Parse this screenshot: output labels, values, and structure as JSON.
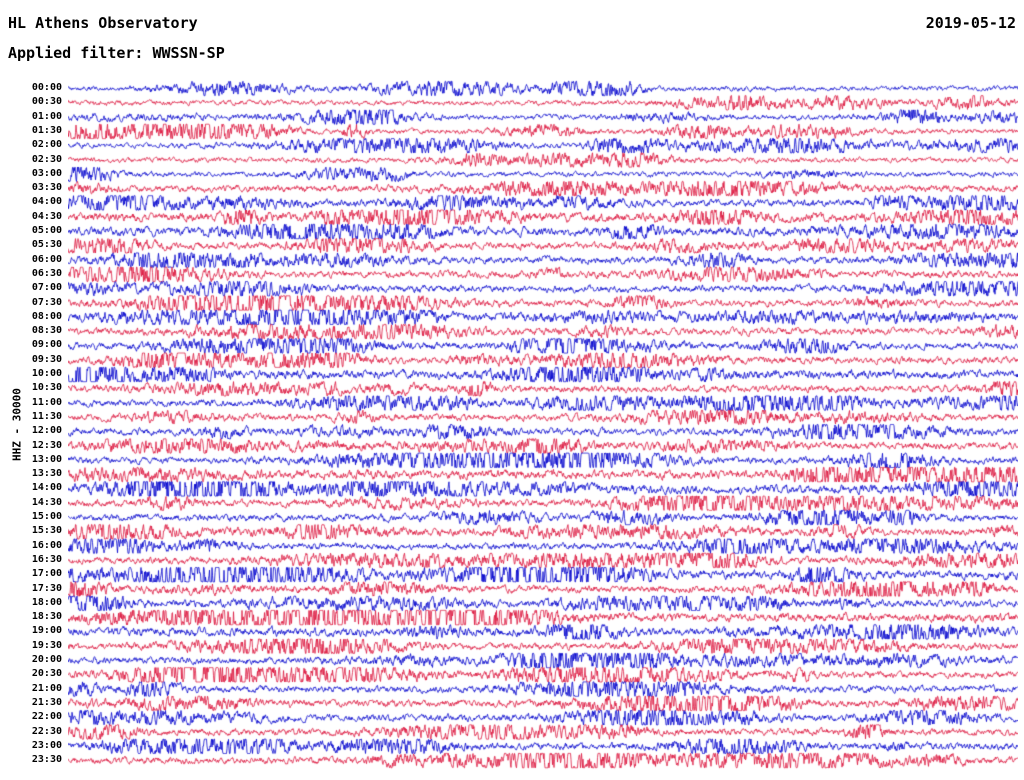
{
  "header": {
    "title": "HL Athens Observatory",
    "date": "2019-05-12",
    "filter": "Applied filter: WWSSN-SP"
  },
  "axis": {
    "channel_label": "HHZ - 30000"
  },
  "colors": {
    "blue": "#0000CD",
    "red": "#DC143C",
    "text": "#000000",
    "background": "#FFFFFF"
  },
  "chart_data": {
    "type": "line",
    "subtype": "seismogram-helicorder",
    "title": "HL Athens Observatory",
    "date": "2019-05-12",
    "filter": "WWSSN-SP",
    "channel_scale_label": "HHZ - 30000",
    "row_duration_minutes": 30,
    "num_rows": 48,
    "legend": "none",
    "grid": false,
    "trace_color_pattern": [
      "blue",
      "red"
    ],
    "rows": [
      {
        "time": "00:00",
        "color": "blue",
        "activity": 1
      },
      {
        "time": "00:30",
        "color": "red",
        "activity": 1
      },
      {
        "time": "01:00",
        "color": "blue",
        "activity": 1
      },
      {
        "time": "01:30",
        "color": "red",
        "activity": 1
      },
      {
        "time": "02:00",
        "color": "blue",
        "activity": 1
      },
      {
        "time": "02:30",
        "color": "red",
        "activity": 1
      },
      {
        "time": "03:00",
        "color": "blue",
        "activity": 1
      },
      {
        "time": "03:30",
        "color": "red",
        "activity": 2
      },
      {
        "time": "04:00",
        "color": "blue",
        "activity": 2
      },
      {
        "time": "04:30",
        "color": "red",
        "activity": 3
      },
      {
        "time": "05:00",
        "color": "blue",
        "activity": 3
      },
      {
        "time": "05:30",
        "color": "red",
        "activity": 2
      },
      {
        "time": "06:00",
        "color": "blue",
        "activity": 2
      },
      {
        "time": "06:30",
        "color": "red",
        "activity": 2
      },
      {
        "time": "07:00",
        "color": "blue",
        "activity": 2
      },
      {
        "time": "07:30",
        "color": "red",
        "activity": 2
      },
      {
        "time": "08:00",
        "color": "blue",
        "activity": 2
      },
      {
        "time": "08:30",
        "color": "red",
        "activity": 2
      },
      {
        "time": "09:00",
        "color": "blue",
        "activity": 2
      },
      {
        "time": "09:30",
        "color": "red",
        "activity": 2
      },
      {
        "time": "10:00",
        "color": "blue",
        "activity": 3
      },
      {
        "time": "10:30",
        "color": "red",
        "activity": 2
      },
      {
        "time": "11:00",
        "color": "blue",
        "activity": 2
      },
      {
        "time": "11:30",
        "color": "red",
        "activity": 2
      },
      {
        "time": "12:00",
        "color": "blue",
        "activity": 2
      },
      {
        "time": "12:30",
        "color": "red",
        "activity": 2
      },
      {
        "time": "13:00",
        "color": "blue",
        "activity": 2
      },
      {
        "time": "13:30",
        "color": "red",
        "activity": 3
      },
      {
        "time": "14:00",
        "color": "blue",
        "activity": 3
      },
      {
        "time": "14:30",
        "color": "red",
        "activity": 2
      },
      {
        "time": "15:00",
        "color": "blue",
        "activity": 2
      },
      {
        "time": "15:30",
        "color": "red",
        "activity": 2
      },
      {
        "time": "16:00",
        "color": "blue",
        "activity": 2
      },
      {
        "time": "16:30",
        "color": "red",
        "activity": 2
      },
      {
        "time": "17:00",
        "color": "blue",
        "activity": 3
      },
      {
        "time": "17:30",
        "color": "red",
        "activity": 2
      },
      {
        "time": "18:00",
        "color": "blue",
        "activity": 2
      },
      {
        "time": "18:30",
        "color": "red",
        "activity": 3
      },
      {
        "time": "19:00",
        "color": "blue",
        "activity": 3
      },
      {
        "time": "19:30",
        "color": "red",
        "activity": 2
      },
      {
        "time": "20:00",
        "color": "blue",
        "activity": 2
      },
      {
        "time": "20:30",
        "color": "red",
        "activity": 2
      },
      {
        "time": "21:00",
        "color": "blue",
        "activity": 2
      },
      {
        "time": "21:30",
        "color": "red",
        "activity": 2
      },
      {
        "time": "22:00",
        "color": "blue",
        "activity": 2
      },
      {
        "time": "22:30",
        "color": "red",
        "activity": 2
      },
      {
        "time": "23:00",
        "color": "blue",
        "activity": 2
      },
      {
        "time": "23:30",
        "color": "red",
        "activity": 2
      }
    ]
  }
}
